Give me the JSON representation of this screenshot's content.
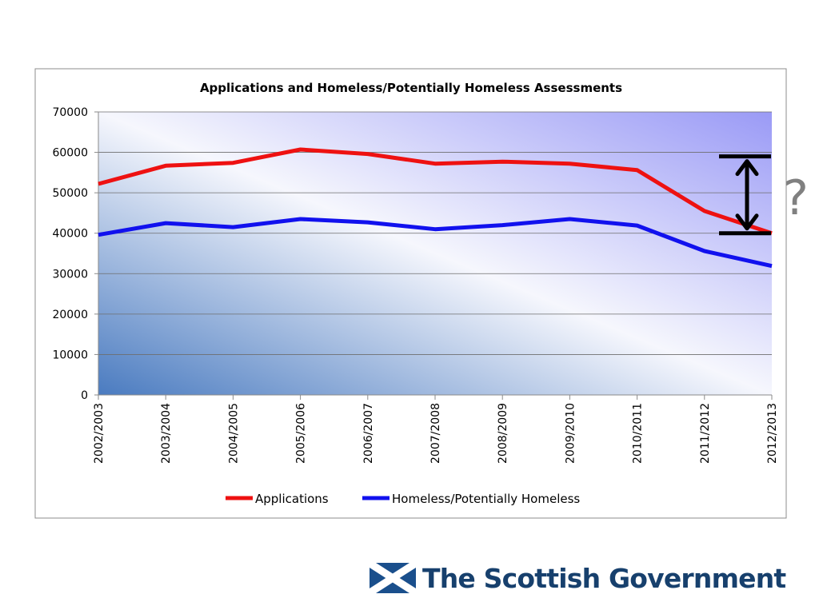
{
  "chart_data": {
    "type": "line",
    "title": "Applications and Homeless/Potentially Homeless Assessments",
    "categories": [
      "2002/2003",
      "2003/2004",
      "2004/2005",
      "2005/2006",
      "2006/2007",
      "2007/2008",
      "2008/2009",
      "2009/2010",
      "2010/2011",
      "2011/2012",
      "2012/2013"
    ],
    "series": [
      {
        "name": "Applications",
        "color": "#ee1111",
        "values": [
          52200,
          56700,
          57400,
          60700,
          59600,
          57200,
          57700,
          57200,
          55600,
          45500,
          40000
        ]
      },
      {
        "name": "Homeless/Potentially Homeless",
        "color": "#1111ee",
        "values": [
          39600,
          42500,
          41500,
          43500,
          42700,
          41000,
          42000,
          43500,
          41900,
          35600,
          31900
        ]
      }
    ],
    "yticks": [
      0,
      10000,
      20000,
      30000,
      40000,
      50000,
      60000,
      70000
    ],
    "ylim": [
      0,
      70000
    ],
    "grid": true,
    "legend": "bottom",
    "annotation": {
      "label": "?",
      "from": 40000,
      "to": 59000
    }
  },
  "logo": {
    "text": "The Scottish Government"
  }
}
